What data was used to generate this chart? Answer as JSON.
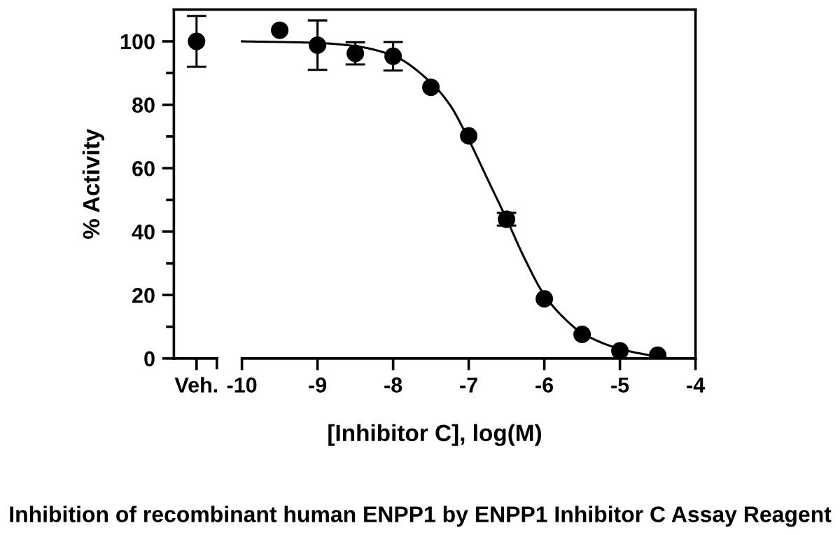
{
  "chart_data": {
    "type": "scatter",
    "xlabel": "[Inhibitor C], log(M)",
    "ylabel": "% Activity",
    "annotations": [
      "Inhibition of recombinant human ENPP1 by ENPP1 Inhibitor C Assay Reagent"
    ],
    "xlim": [
      -10.9,
      -4
    ],
    "xticks": [
      {
        "value": -10.6,
        "label": "Veh."
      },
      -10,
      -9,
      -8,
      -7,
      -6,
      -5,
      -4
    ],
    "ylim": [
      0,
      110
    ],
    "yticks": [
      0,
      20,
      40,
      60,
      80,
      100
    ],
    "grid": false,
    "legend": false,
    "series": [
      {
        "color": "#000000",
        "marker": "circle",
        "x": [
          -10.6,
          -9.5,
          -9,
          -8.5,
          -8,
          -7.5,
          -7,
          -6.5,
          -6,
          -5.5,
          -5,
          -4.5
        ],
        "values": [
          100,
          103.5,
          98.8,
          96.2,
          95.3,
          85.5,
          70.2,
          43.9,
          18.8,
          7.6,
          2.4,
          1
        ],
        "errors": [
          8,
          null,
          7.8,
          3.5,
          4.5,
          null,
          null,
          2,
          null,
          null,
          null,
          null
        ]
      },
      {
        "type": "line",
        "color": "#000000",
        "line_style": "solid",
        "marker": "none",
        "x": [
          -10,
          -9,
          -8.5,
          -8,
          -7.5,
          -7.25,
          -7,
          -6.75,
          -6.5,
          -6.25,
          -6,
          -5.75,
          -5.5,
          -5,
          -4.5
        ],
        "values": [
          100,
          99.5,
          98.5,
          95.5,
          87,
          80,
          69,
          56.5,
          44,
          31,
          20,
          13,
          8,
          3,
          0.5
        ]
      }
    ]
  }
}
